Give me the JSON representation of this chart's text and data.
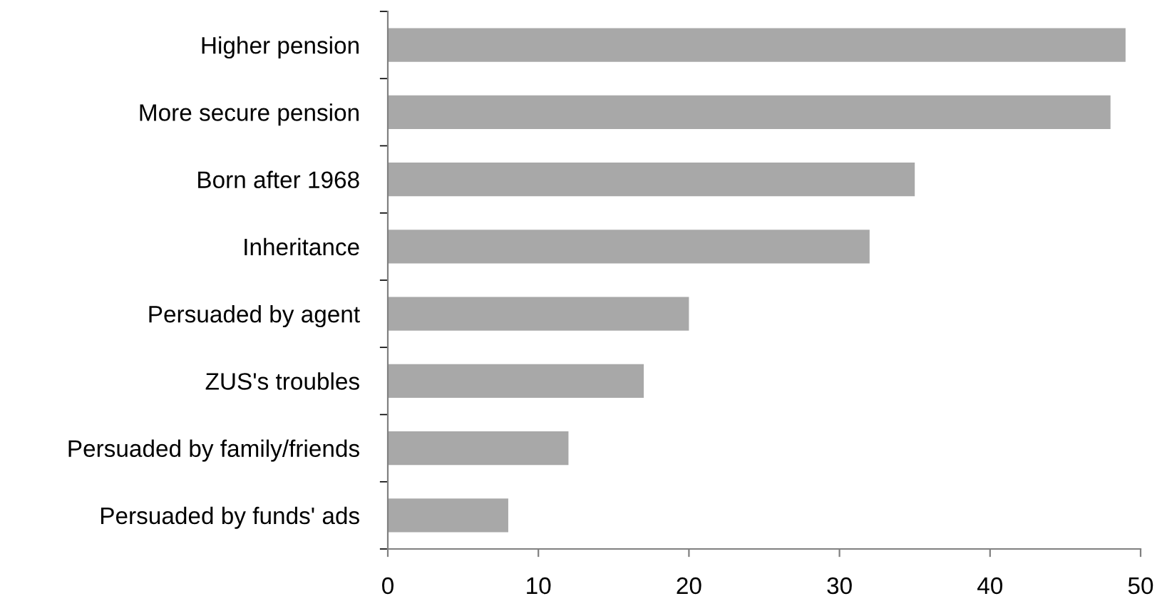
{
  "chart_data": {
    "type": "bar",
    "orientation": "horizontal",
    "categories": [
      "Higher pension",
      "More secure pension",
      "Born after 1968",
      "Inheritance",
      "Persuaded by agent",
      "ZUS's troubles",
      "Persuaded by family/friends",
      "Persuaded by funds' ads"
    ],
    "values": [
      49,
      48,
      35,
      32,
      20,
      17,
      12,
      8
    ],
    "color": "#a8a8a8",
    "xlim": [
      0,
      50
    ],
    "xticks": [
      0,
      10,
      20,
      30,
      40,
      50
    ],
    "grid": false,
    "legend": false
  }
}
